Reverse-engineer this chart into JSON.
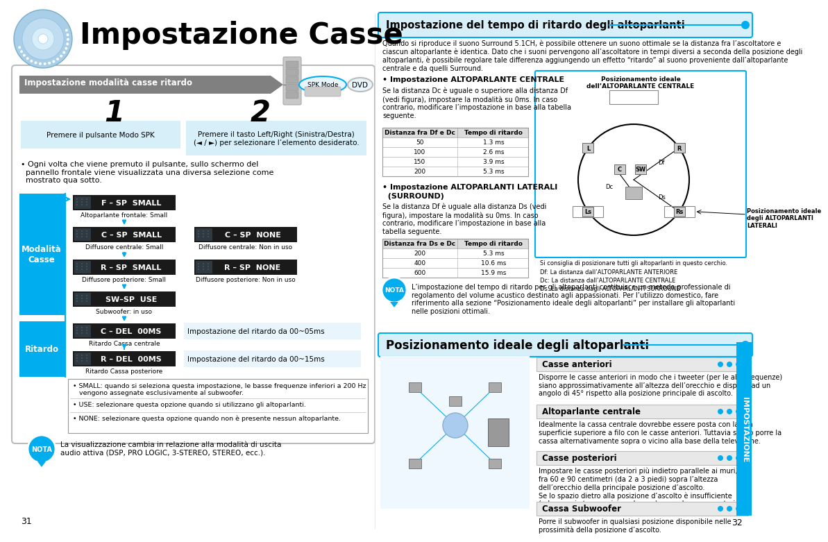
{
  "title": "Impostazione Casse",
  "left_section_title": "Impostazione modalità casse ritardo",
  "spk_label": "SPK Mode",
  "dvd_label": "DVD",
  "step1_title": "1",
  "step2_title": "2",
  "step1_text": "Premere il pulsante Modo SPK",
  "step2_text": "Premere il tasto Left/Right (Sinistra/Destra)\n(◄ / ►) per selezionare l’elemento desiderato.",
  "bullet_text": "• Ogni volta che viene premuto il pulsante, sullo schermo del\n  pannello frontale viene visualizzata una diversa selezione come\n  mostrato qua sotto.",
  "modalita_label": "Modalità\nCasse",
  "ritardo_label": "Ritardo",
  "display_rows": [
    {
      "items": [
        {
          "text": "F – SP  SMALL",
          "label": "Altoparlante frontale: Small"
        }
      ]
    },
    {
      "items": [
        {
          "text": "C – SP  SMALL",
          "label": "Diffusore centrale: Small"
        },
        {
          "text": "C – SP  NONE",
          "label": "Diffusore centrale: Non in uso"
        }
      ]
    },
    {
      "items": [
        {
          "text": "R – SP  SMALL",
          "label": "Diffusore posteriore: Small"
        },
        {
          "text": "R – SP  NONE",
          "label": "Diffusore posteriore: Non in uso"
        }
      ]
    },
    {
      "items": [
        {
          "text": "SW–SP  USE",
          "label": "Subwoofer: in uso"
        }
      ]
    },
    {
      "items": [
        {
          "text": "C – DEL  00MS",
          "label": "Ritardo Cassa centrale",
          "label2": "Impostazione del ritardo da 00~05ms"
        }
      ]
    },
    {
      "items": [
        {
          "text": "R – DEL  00MS",
          "label": "Ritardo Cassa posteriore",
          "label2": "Impostazione del ritardo da 00~15ms"
        }
      ]
    }
  ],
  "note1_text": "• SMALL: quando si seleziona questa impostazione, le basse frequenze inferiori a 200 Hz\n   vengono assegnate esclusivamente al subwoofer.",
  "note2_text": "• USE: selezionare questa opzione quando si utilizzano gli altoparlanti.",
  "note3_text": "• NONE: selezionare questa opzione quando non è presente nessun altoparlante.",
  "nota1_text": "La visualizzazione cambia in relazione alla modalità di uscita\naudio attiva (DSP, PRO LOGIC, 3-STEREO, STEREO, ecc.).",
  "page_num_left": "31",
  "right_main_title": "Impostazione del tempo di ritardo degli altoparlanti",
  "right_intro_line1": "Quando si riproduce il suono Surround 5.1CH, è possibile ottenere un suono ottimale se la distanza fra l’ascoltatore e",
  "right_intro_line2": "ciascun altoparlante è identica. Dato che i suoni pervengono all’ascoltatore in tempi diversi a seconda della posizione degli",
  "right_intro_line3": "altoparlanti, è possibile regolare tale differenza aggiungendo un effetto “ritardo” al suono proveniente dall’altoparlante",
  "right_intro_line4": "centrale e da quelli Surround.",
  "centrale_title": "• Impostazione ALTOPARLANTE CENTRALE",
  "centrale_text": "Se la distanza Dc è uguale o superiore alla distanza Df\n(vedi figura), impostare la modalità su 0ms. In caso\ncontrario, modificare l’impostazione in base alla tabella\nseguente.",
  "table1_header": [
    "Distanza fra Df e Dc",
    "Tempo di ritardo"
  ],
  "table1_rows": [
    [
      "50",
      "1.3 ms"
    ],
    [
      "100",
      "2.6 ms"
    ],
    [
      "150",
      "3.9 ms"
    ],
    [
      "200",
      "5.3 ms"
    ]
  ],
  "laterali_title1": "• Impostazione ALTOPARLANTI LATERALI",
  "laterali_title2": "  (SURROUND)",
  "laterali_text": "Se la distanza Df è uguale alla distanza Ds (vedi\nfigura), impostare la modalità su 0ms. In caso\ncontrario, modificare l’impostazione in base alla\ntabella seguente.",
  "table2_header": [
    "Distanza fra Ds e Dc",
    "Tempo di ritardo"
  ],
  "table2_rows": [
    [
      "200",
      "5.3 ms"
    ],
    [
      "400",
      "10.6 ms"
    ],
    [
      "600",
      "15.9 ms"
    ]
  ],
  "nota2_text": "L’impostazione del tempo di ritardo per gli altoparlanti costituisce un metodo professionale di\nregolamento del volume acustico destinato agli appassionati. Per l’utilizzo domestico, fare\nriferimento alla sezione “Posizionamento ideale degli altoparlanti” per installare gli altoparlanti\nnelle posizioni ottimali.",
  "posiz_title": "Posizionamento ideale degli altoparlanti",
  "casse_ant_title": "Casse anteriori",
  "casse_ant_text": "Disporre le casse anteriori in modo che i tweeter (per le alte frequenze)\nsiano approssimativamente all’altezza dell’orecchio e disposti ad un\nangolo di 45° rispetto alla posizione principale di ascolto.",
  "alto_centrale_title": "Altoparlante centrale",
  "alto_centrale_text": "Idealmente la cassa centrale dovrebbe essere posta con la sua\nsuperficie superiore a filo con le casse anteriori. Tuttavia si può porre la\ncassa alternativamente sopra o vicino alla base della televisione.",
  "casse_post_title": "Casse posteriori",
  "casse_post_text": "Impostare le casse posteriori più indietro parallele ai muri,\nfra 60 e 90 centimetri (da 2 a 3 piedi) sopra l’altezza\ndell’orecchio della principale posizione d’ascolto.\nSe lo spazio dietro alla posizione d’ascolto è insufficiente\n(ad esempio troppo vicino al muro), porre le casse posteriori\nai lati, una di fronte all’altra.",
  "cassa_sub_title": "Cassa Subwoofer",
  "cassa_sub_text": "Porre il subwoofer in qualsiasi posizione disponibile nelle\nprossimità della posizione d’ascolto.",
  "page_num_right": "32",
  "impostazione_vert": "IMPOSTAZIONE",
  "diagram_circle_note": "Si consiglia di posizionare tutti gli altoparlanti in questo cerchio.",
  "diagram_df": "Df: La distanza dall’ALTOPARLANTE ANTERIORE",
  "diagram_dc": "Dc: La distanza dall’ALTOPARLANTE CENTRALE",
  "diagram_ds": "Ds: La distanza dagli ALTOPARLANTI SURROUND",
  "diag_posiz_centrale": "Posizionamento ideale\ndell’ALTOPARLANTE CENTRALE",
  "diag_posiz_laterali": "Posizionamento ideale\ndegli ALTOPARLANTI\nLATERALI",
  "cyan": "#00AEEF",
  "light_blue": "#D6EFF9",
  "light_blue2": "#E8F5FC",
  "dark_display": "#1A1A1A",
  "gray_banner": "#808080",
  "border_light": "#CCCCCC",
  "border_dark": "#999999"
}
